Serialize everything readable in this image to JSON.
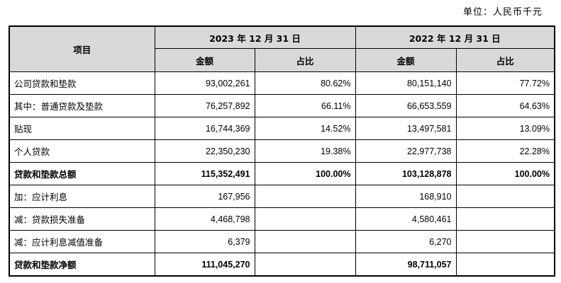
{
  "unit_label": "单位：人民币千元",
  "table": {
    "item_header": "项目",
    "periods": [
      {
        "label": "2023 年 12 月 31 日",
        "amount_header": "金额",
        "ratio_header": "占比"
      },
      {
        "label": "2022 年 12 月 31 日",
        "amount_header": "金额",
        "ratio_header": "占比"
      }
    ],
    "rows": [
      {
        "label": "公司贷款和垫款",
        "v2023": "93,002,261",
        "r2023": "80.62%",
        "v2022": "80,151,140",
        "r2022": "77.72%"
      },
      {
        "label": "其中：普通贷款及垫款",
        "v2023": "76,257,892",
        "r2023": "66.11%",
        "v2022": "66,653,559",
        "r2022": "64.63%"
      },
      {
        "label": "贴现",
        "v2023": "16,744,369",
        "r2023": "14.52%",
        "v2022": "13,497,581",
        "r2022": "13.09%"
      },
      {
        "label": "个人贷款",
        "v2023": "22,350,230",
        "r2023": "19.38%",
        "v2022": "22,977,738",
        "r2022": "22.28%"
      },
      {
        "label": "贷款和垫款总额",
        "v2023": "115,352,491",
        "r2023": "100.00%",
        "v2022": "103,128,878",
        "r2022": "100.00%"
      },
      {
        "label": "加：应计利息",
        "v2023": "167,956",
        "r2023": "",
        "v2022": "168,910",
        "r2022": ""
      },
      {
        "label": "减：贷款损失准备",
        "v2023": "4,468,798",
        "r2023": "",
        "v2022": "4,580,461",
        "r2022": ""
      },
      {
        "label": "减：应计利息减值准备",
        "v2023": "6,379",
        "r2023": "",
        "v2022": "6,270",
        "r2022": ""
      },
      {
        "label": "贷款和垫款净额",
        "v2023": "111,045,270",
        "r2023": "",
        "v2022": "98,711,057",
        "r2022": ""
      }
    ]
  }
}
